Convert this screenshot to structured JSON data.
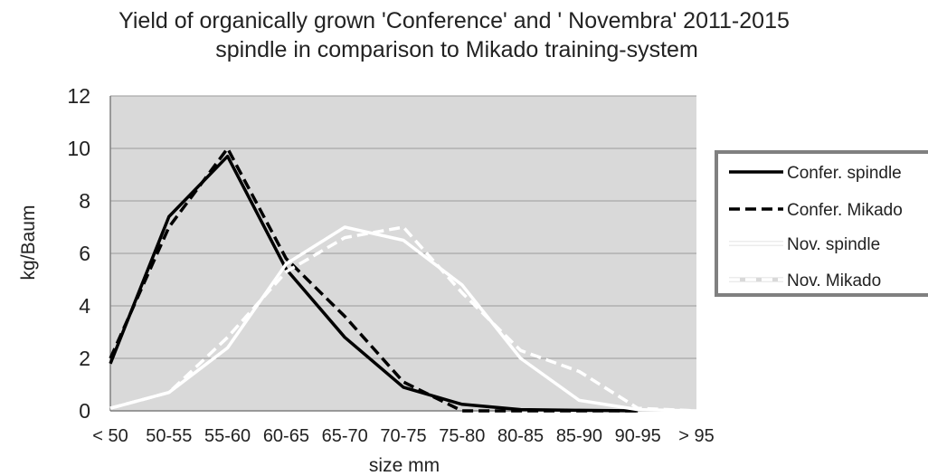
{
  "chart_data": {
    "type": "line",
    "title_lines": [
      "Yield of organically grown 'Conference' and ' Novembra' 2011-2015",
      "spindle in comparison to Mikado training-system"
    ],
    "xlabel": "size mm",
    "ylabel": "kg/Baum",
    "ylim": [
      0,
      12
    ],
    "yticks": [
      0,
      2,
      4,
      6,
      8,
      10,
      12
    ],
    "grid": true,
    "legend_position": "right",
    "categories": [
      "< 50",
      "50-55",
      "55-60",
      "60-65",
      "65-70",
      "70-75",
      "75-80",
      "80-85",
      "85-90",
      "90-95",
      "> 95"
    ],
    "series": [
      {
        "name": "Confer. spindle",
        "color": "#000000",
        "dash": "solid",
        "values": [
          1.8,
          7.4,
          9.7,
          5.4,
          2.8,
          0.9,
          0.25,
          0.05,
          0.02,
          0.0,
          null
        ]
      },
      {
        "name": "Confer. Mikado",
        "color": "#000000",
        "dash": "dashed",
        "values": [
          2.0,
          7.0,
          10.0,
          5.8,
          3.6,
          1.1,
          0.0,
          0.0,
          0.0,
          0.0,
          null
        ]
      },
      {
        "name": "Nov. spindle",
        "color": "#ffffff",
        "dash": "solid",
        "values": [
          0.1,
          0.7,
          2.4,
          5.6,
          7.0,
          6.5,
          4.8,
          2.0,
          0.4,
          0.05,
          0.0
        ]
      },
      {
        "name": "Nov. Mikado",
        "color": "#ffffff",
        "dash": "dashed",
        "values": [
          0.1,
          0.7,
          2.8,
          5.3,
          6.6,
          7.0,
          4.5,
          2.3,
          1.5,
          0.1,
          0.0
        ]
      }
    ],
    "colors": {
      "plot_bg": "#d9d9d9",
      "grid": "#9a9a9a",
      "axis": "#7f7f7f",
      "legend_border": "#808080"
    }
  }
}
